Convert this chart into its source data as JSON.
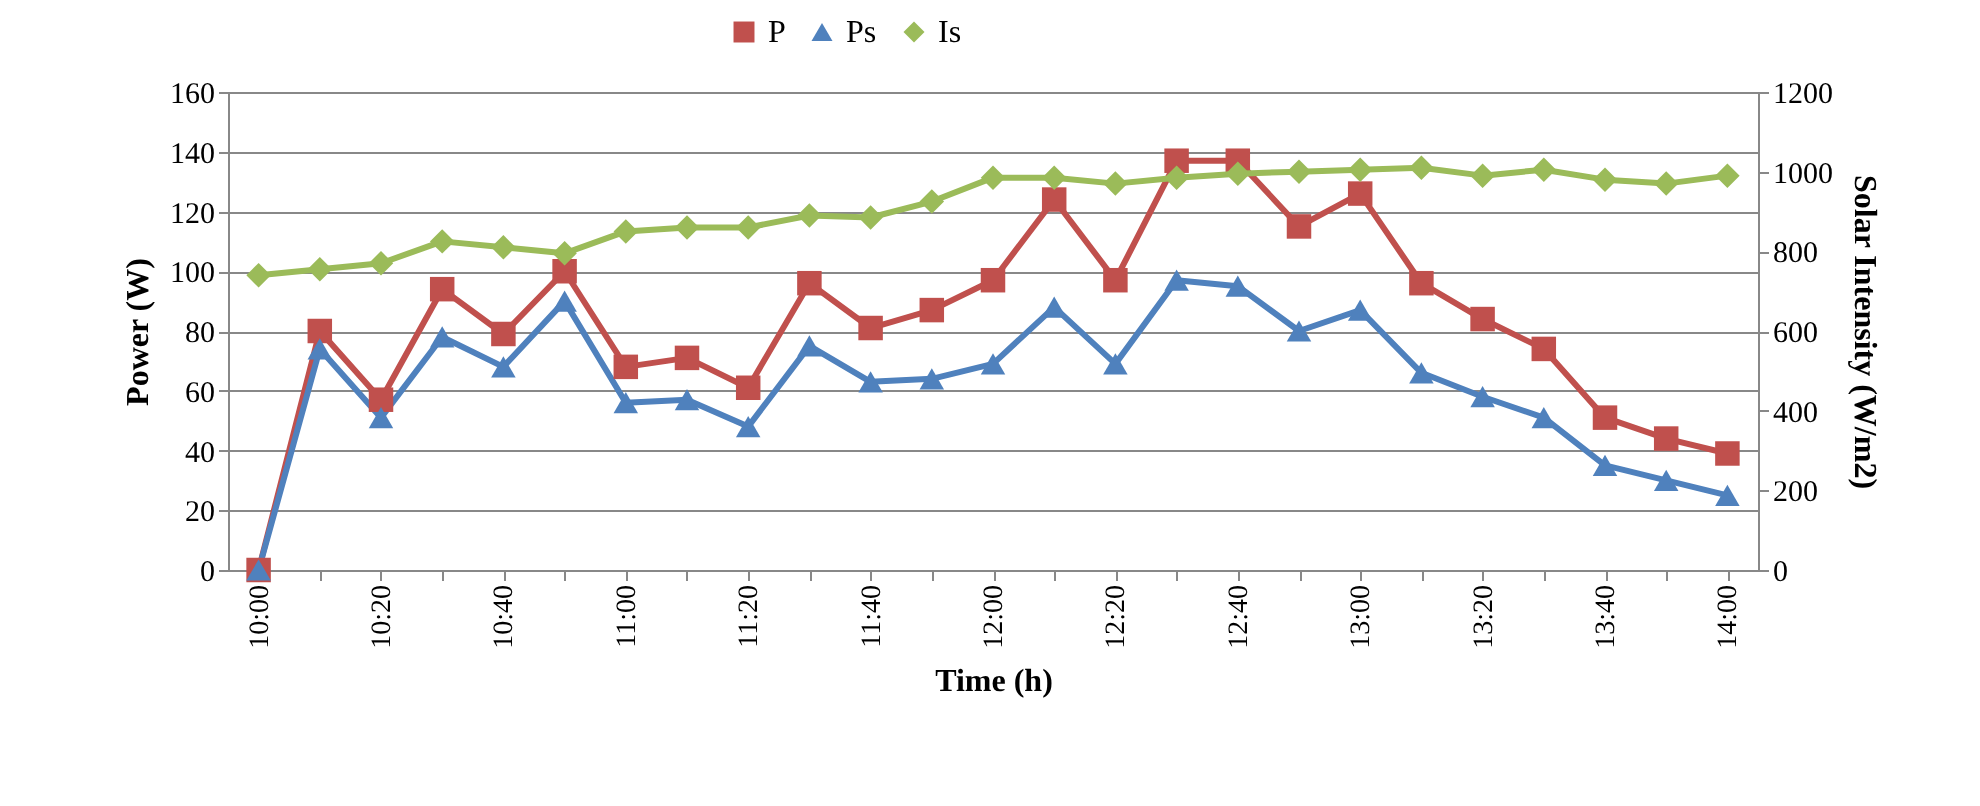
{
  "chart_data": {
    "type": "line",
    "xlabel": "Time (h)",
    "ylabel": "Power (W)",
    "y2label": "Solar Intensity (W/m2)",
    "categories": [
      "10:00",
      null,
      "10:20",
      null,
      "10:40",
      null,
      "11:00",
      null,
      "11:20",
      null,
      "11:40",
      null,
      "12:00",
      null,
      "12:20",
      null,
      "12:40",
      null,
      "13:00",
      null,
      "13:20",
      null,
      "13:40",
      null,
      "14:00"
    ],
    "series": [
      {
        "name": "P",
        "color": "#c0504d",
        "marker": "square",
        "values": [
          0,
          80,
          57,
          94,
          79,
          100,
          68,
          71,
          61,
          96,
          81,
          87,
          97,
          124,
          97,
          137,
          137,
          115,
          126,
          96,
          84,
          74,
          51,
          44,
          39
        ]
      },
      {
        "name": "Ps",
        "color": "#4f81bd",
        "marker": "triangle",
        "values": [
          0,
          74,
          51,
          78,
          68,
          90,
          56,
          57,
          48,
          75,
          63,
          64,
          69,
          88,
          69,
          97,
          95,
          80,
          87,
          66,
          58,
          51,
          35,
          30,
          25
        ]
      },
      {
        "name": "Is",
        "color": "#9bbb59",
        "marker": "diamond",
        "axis": "y2",
        "values": [
          740,
          755,
          770,
          825,
          810,
          795,
          850,
          860,
          860,
          890,
          885,
          925,
          985,
          985,
          970,
          985,
          995,
          1000,
          1005,
          1010,
          990,
          1005,
          980,
          970,
          990
        ]
      }
    ],
    "ylim": [
      0,
      160
    ],
    "yticks": [
      0,
      20,
      40,
      60,
      80,
      100,
      120,
      140,
      160
    ],
    "y2lim": [
      0,
      1200
    ],
    "y2ticks": [
      0,
      200,
      400,
      600,
      800,
      1000,
      1200
    ],
    "grid": "y",
    "legend": "top",
    "line_style": "solid"
  }
}
